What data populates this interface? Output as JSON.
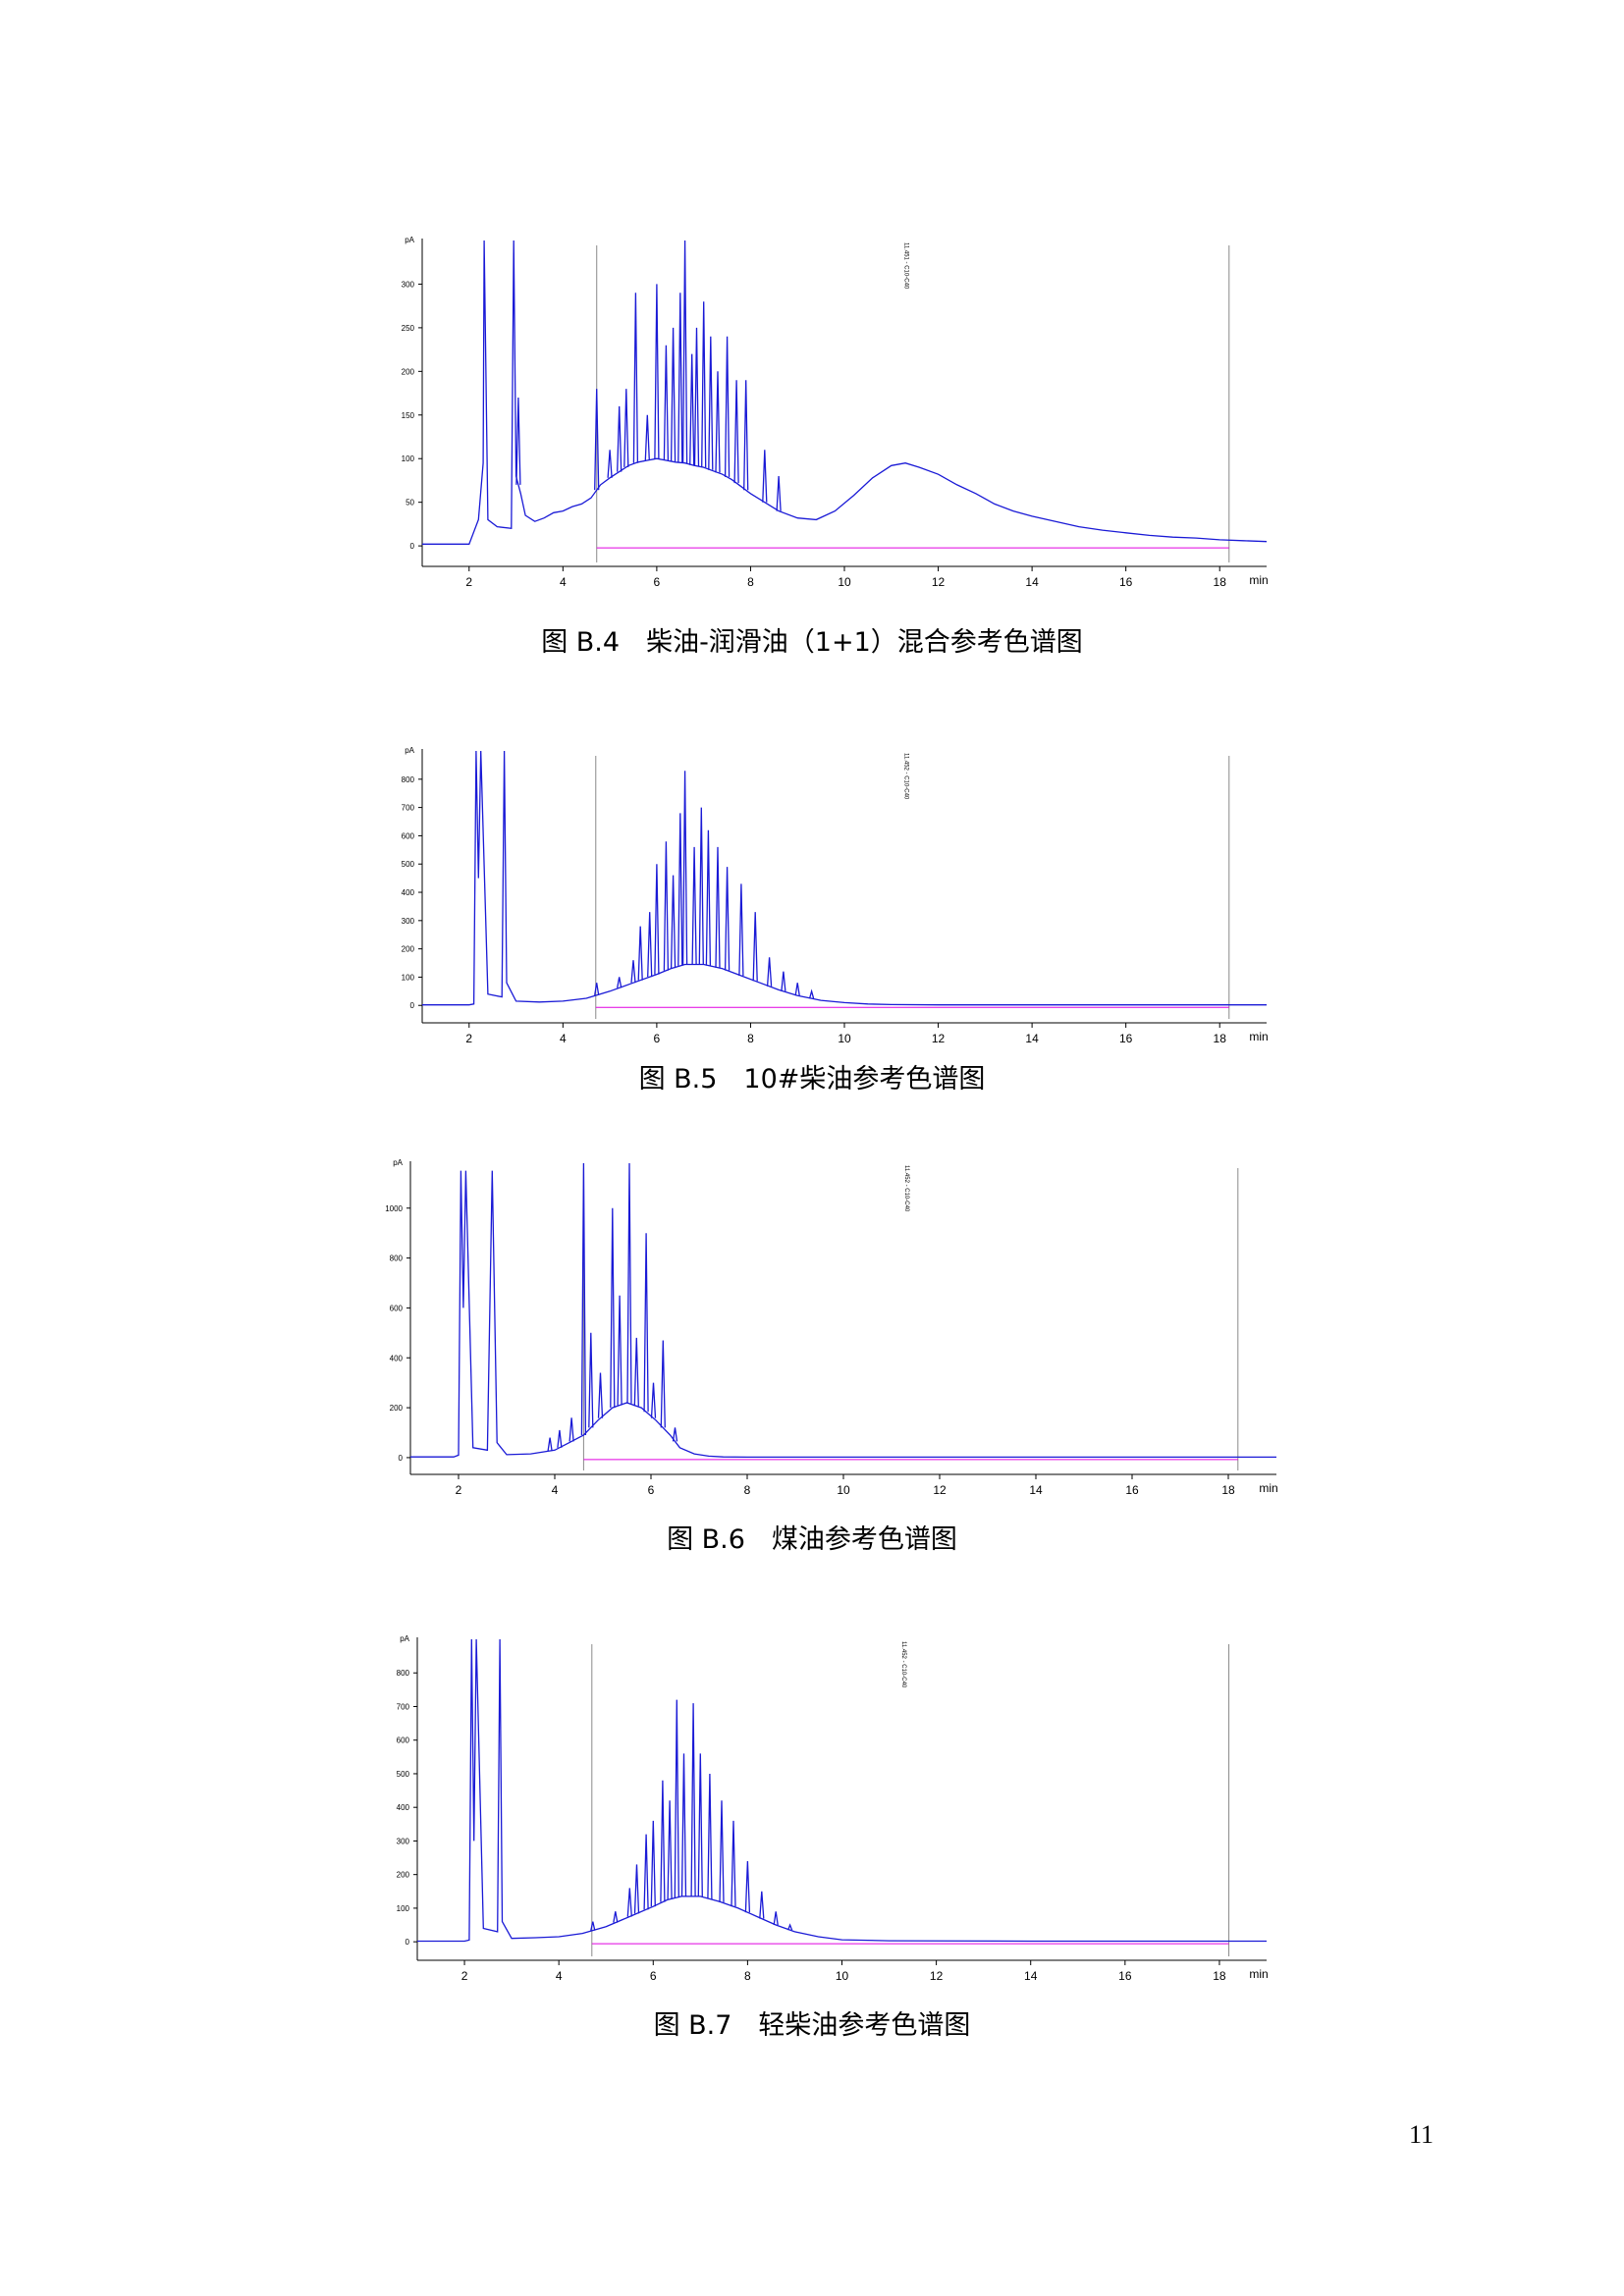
{
  "page": {
    "page_number": "11"
  },
  "colors": {
    "trace": "#1a1ad6",
    "baseline": "#e000e0",
    "marker": "#8a8a8a",
    "axis": "#000000"
  },
  "chart_data": [
    {
      "type": "line",
      "caption": "图 B.4　柴油-润滑油（1+1）混合参考色谱图",
      "title": "",
      "xlabel": "",
      "ylabel": "",
      "y_unit": "pA",
      "x_unit": "min",
      "xlim": [
        1,
        19
      ],
      "ylim": [
        -10,
        350
      ],
      "xticks": [
        "2",
        "4",
        "6",
        "8",
        "10",
        "12",
        "14",
        "16",
        "18",
        "min"
      ],
      "xtick_values": [
        2,
        4,
        6,
        8,
        10,
        12,
        14,
        16,
        18
      ],
      "yticks": [
        "0",
        "50",
        "100",
        "150",
        "200",
        "250",
        "300",
        "pA"
      ],
      "ytick_values": [
        0,
        50,
        100,
        150,
        200,
        250,
        300
      ],
      "annotation": "11.451 - C10-C40",
      "annotation_x": 11.45,
      "markers_x": [
        4.72,
        18.2
      ],
      "baseline_range": [
        4.72,
        18.2
      ],
      "series": [
        {
          "x": [
            1.0,
            2.0,
            2.2,
            2.3,
            2.32,
            2.4,
            2.6,
            2.9,
            2.95,
            3.0,
            3.1,
            3.2,
            3.4,
            3.6,
            3.8,
            4.0,
            4.2,
            4.4,
            4.6,
            4.8,
            5.0,
            5.2,
            5.4,
            5.6,
            5.8,
            6.0,
            6.2,
            6.4,
            6.6,
            6.8,
            7.0,
            7.2,
            7.4,
            7.6,
            7.8,
            8.0,
            8.3,
            8.6,
            9.0,
            9.4,
            9.8,
            10.2,
            10.6,
            11.0,
            11.3,
            11.6,
            12.0,
            12.4,
            12.8,
            13.2,
            13.6,
            14.0,
            14.5,
            15.0,
            15.5,
            16.0,
            16.5,
            17.0,
            17.5,
            18.0,
            18.5,
            19.0
          ],
          "y": [
            2,
            2,
            30,
            95,
            400,
            30,
            22,
            20,
            400,
            80,
            60,
            35,
            28,
            32,
            38,
            40,
            45,
            48,
            55,
            70,
            78,
            85,
            92,
            96,
            98,
            100,
            98,
            96,
            95,
            92,
            90,
            86,
            82,
            76,
            68,
            60,
            50,
            40,
            32,
            30,
            40,
            58,
            78,
            92,
            95,
            90,
            82,
            70,
            60,
            48,
            40,
            34,
            28,
            22,
            18,
            15,
            12,
            10,
            9,
            7,
            6,
            5
          ]
        }
      ],
      "peaks": [
        {
          "x": 3.05,
          "y": 170
        },
        {
          "x": 4.72,
          "y": 180
        },
        {
          "x": 5.0,
          "y": 110
        },
        {
          "x": 5.2,
          "y": 160
        },
        {
          "x": 5.35,
          "y": 180
        },
        {
          "x": 5.55,
          "y": 290
        },
        {
          "x": 5.8,
          "y": 150
        },
        {
          "x": 6.0,
          "y": 300
        },
        {
          "x": 6.2,
          "y": 230
        },
        {
          "x": 6.35,
          "y": 250
        },
        {
          "x": 6.5,
          "y": 290
        },
        {
          "x": 6.6,
          "y": 350
        },
        {
          "x": 6.75,
          "y": 220
        },
        {
          "x": 6.85,
          "y": 250
        },
        {
          "x": 7.0,
          "y": 280
        },
        {
          "x": 7.15,
          "y": 240
        },
        {
          "x": 7.3,
          "y": 200
        },
        {
          "x": 7.5,
          "y": 240
        },
        {
          "x": 7.7,
          "y": 190
        },
        {
          "x": 7.9,
          "y": 190
        },
        {
          "x": 8.3,
          "y": 110
        },
        {
          "x": 8.6,
          "y": 80
        }
      ]
    },
    {
      "type": "line",
      "caption": "图 B.5　10#柴油参考色谱图",
      "title": "",
      "xlabel": "",
      "ylabel": "",
      "y_unit": "pA",
      "x_unit": "min",
      "xlim": [
        1,
        19
      ],
      "ylim": [
        -20,
        900
      ],
      "xticks": [
        "2",
        "4",
        "6",
        "8",
        "10",
        "12",
        "14",
        "16",
        "18",
        "min"
      ],
      "xtick_values": [
        2,
        4,
        6,
        8,
        10,
        12,
        14,
        16,
        18
      ],
      "yticks": [
        "0",
        "100",
        "200",
        "300",
        "400",
        "500",
        "600",
        "700",
        "800",
        "pA"
      ],
      "ytick_values": [
        0,
        100,
        200,
        300,
        400,
        500,
        600,
        700,
        800
      ],
      "annotation": "11.452 - C10-C40",
      "annotation_x": 11.45,
      "markers_x": [
        4.7,
        18.2
      ],
      "baseline_range": [
        4.7,
        18.2
      ],
      "series": [
        {
          "x": [
            1.0,
            2.0,
            2.1,
            2.15,
            2.2,
            2.25,
            2.4,
            2.7,
            2.75,
            2.8,
            3.0,
            3.5,
            4.0,
            4.5,
            5.0,
            5.5,
            6.0,
            6.3,
            6.6,
            7.0,
            7.4,
            7.8,
            8.2,
            8.6,
            9.0,
            9.5,
            10.0,
            10.5,
            11.0,
            12.0,
            14.0,
            16.0,
            18.0,
            19.0
          ],
          "y": [
            2,
            2,
            5,
            900,
            450,
            900,
            40,
            30,
            900,
            80,
            15,
            12,
            15,
            25,
            50,
            80,
            110,
            130,
            145,
            145,
            130,
            105,
            80,
            55,
            35,
            18,
            10,
            5,
            3,
            2,
            2,
            2,
            2,
            2
          ]
        }
      ],
      "peaks": [
        {
          "x": 4.72,
          "y": 80
        },
        {
          "x": 5.2,
          "y": 100
        },
        {
          "x": 5.5,
          "y": 160
        },
        {
          "x": 5.65,
          "y": 280
        },
        {
          "x": 5.85,
          "y": 330
        },
        {
          "x": 6.0,
          "y": 500
        },
        {
          "x": 6.2,
          "y": 580
        },
        {
          "x": 6.35,
          "y": 460
        },
        {
          "x": 6.5,
          "y": 680
        },
        {
          "x": 6.6,
          "y": 830
        },
        {
          "x": 6.8,
          "y": 560
        },
        {
          "x": 6.95,
          "y": 700
        },
        {
          "x": 7.1,
          "y": 620
        },
        {
          "x": 7.3,
          "y": 560
        },
        {
          "x": 7.5,
          "y": 490
        },
        {
          "x": 7.8,
          "y": 430
        },
        {
          "x": 8.1,
          "y": 330
        },
        {
          "x": 8.4,
          "y": 170
        },
        {
          "x": 8.7,
          "y": 120
        },
        {
          "x": 9.0,
          "y": 80
        },
        {
          "x": 9.3,
          "y": 50
        }
      ]
    },
    {
      "type": "line",
      "caption": "图 B.6　煤油参考色谱图",
      "title": "",
      "xlabel": "",
      "ylabel": "",
      "y_unit": "pA",
      "x_unit": "min",
      "xlim": [
        1,
        19
      ],
      "ylim": [
        -20,
        1180
      ],
      "xticks": [
        "2",
        "4",
        "6",
        "8",
        "10",
        "12",
        "14",
        "16",
        "18",
        "min"
      ],
      "xtick_values": [
        2,
        4,
        6,
        8,
        10,
        12,
        14,
        16,
        18
      ],
      "yticks": [
        "0",
        "200",
        "400",
        "600",
        "800",
        "1000",
        "pA"
      ],
      "ytick_values": [
        0,
        200,
        400,
        600,
        800,
        1000
      ],
      "annotation": "11.452 - C10-C40",
      "annotation_x": 11.45,
      "markers_x": [
        4.6,
        18.2
      ],
      "baseline_range": [
        4.6,
        18.2
      ],
      "series": [
        {
          "x": [
            1.0,
            1.9,
            2.0,
            2.05,
            2.1,
            2.15,
            2.3,
            2.6,
            2.7,
            2.8,
            3.0,
            3.5,
            4.0,
            4.3,
            4.6,
            4.9,
            5.2,
            5.5,
            5.8,
            6.1,
            6.4,
            6.6,
            6.9,
            7.2,
            7.5,
            8.0,
            10.0,
            14.0,
            18.0,
            19.0
          ],
          "y": [
            3,
            3,
            10,
            1150,
            600,
            1150,
            40,
            30,
            1150,
            60,
            12,
            15,
            30,
            60,
            90,
            150,
            200,
            220,
            200,
            150,
            90,
            40,
            15,
            6,
            3,
            2,
            2,
            2,
            2,
            2
          ]
        }
      ],
      "peaks": [
        {
          "x": 3.9,
          "y": 80
        },
        {
          "x": 4.1,
          "y": 110
        },
        {
          "x": 4.35,
          "y": 160
        },
        {
          "x": 4.6,
          "y": 1180
        },
        {
          "x": 4.75,
          "y": 500
        },
        {
          "x": 4.95,
          "y": 340
        },
        {
          "x": 5.2,
          "y": 1000
        },
        {
          "x": 5.35,
          "y": 650
        },
        {
          "x": 5.55,
          "y": 1180
        },
        {
          "x": 5.7,
          "y": 480
        },
        {
          "x": 5.9,
          "y": 900
        },
        {
          "x": 6.05,
          "y": 300
        },
        {
          "x": 6.25,
          "y": 470
        },
        {
          "x": 6.5,
          "y": 120
        }
      ]
    },
    {
      "type": "line",
      "caption": "图 B.7　轻柴油参考色谱图",
      "title": "",
      "xlabel": "",
      "ylabel": "",
      "y_unit": "pA",
      "x_unit": "min",
      "xlim": [
        1,
        19
      ],
      "ylim": [
        -20,
        900
      ],
      "xticks": [
        "2",
        "4",
        "6",
        "8",
        "10",
        "12",
        "14",
        "16",
        "18",
        "min"
      ],
      "xtick_values": [
        2,
        4,
        6,
        8,
        10,
        12,
        14,
        16,
        18
      ],
      "yticks": [
        "0",
        "100",
        "200",
        "300",
        "400",
        "500",
        "600",
        "700",
        "800",
        "pA"
      ],
      "ytick_values": [
        0,
        100,
        200,
        300,
        400,
        500,
        600,
        700,
        800
      ],
      "annotation": "11.452 - C10-C40",
      "annotation_x": 11.45,
      "markers_x": [
        4.7,
        18.2
      ],
      "baseline_range": [
        4.7,
        18.2
      ],
      "series": [
        {
          "x": [
            1.0,
            2.0,
            2.1,
            2.15,
            2.2,
            2.25,
            2.4,
            2.7,
            2.75,
            2.8,
            3.0,
            3.5,
            4.0,
            4.5,
            5.0,
            5.5,
            6.0,
            6.3,
            6.6,
            7.0,
            7.4,
            7.8,
            8.2,
            8.6,
            9.0,
            9.5,
            10.0,
            11.0,
            14.0,
            18.0,
            19.0
          ],
          "y": [
            2,
            2,
            5,
            900,
            300,
            900,
            40,
            30,
            900,
            60,
            10,
            12,
            15,
            25,
            45,
            75,
            105,
            125,
            135,
            135,
            120,
            100,
            75,
            50,
            30,
            15,
            6,
            3,
            2,
            2,
            2
          ]
        }
      ],
      "peaks": [
        {
          "x": 4.72,
          "y": 60
        },
        {
          "x": 5.2,
          "y": 90
        },
        {
          "x": 5.5,
          "y": 160
        },
        {
          "x": 5.65,
          "y": 230
        },
        {
          "x": 5.85,
          "y": 320
        },
        {
          "x": 6.0,
          "y": 360
        },
        {
          "x": 6.2,
          "y": 480
        },
        {
          "x": 6.35,
          "y": 420
        },
        {
          "x": 6.5,
          "y": 720
        },
        {
          "x": 6.65,
          "y": 560
        },
        {
          "x": 6.85,
          "y": 710
        },
        {
          "x": 7.0,
          "y": 560
        },
        {
          "x": 7.2,
          "y": 500
        },
        {
          "x": 7.45,
          "y": 420
        },
        {
          "x": 7.7,
          "y": 360
        },
        {
          "x": 8.0,
          "y": 240
        },
        {
          "x": 8.3,
          "y": 150
        },
        {
          "x": 8.6,
          "y": 90
        },
        {
          "x": 8.9,
          "y": 50
        }
      ]
    }
  ]
}
